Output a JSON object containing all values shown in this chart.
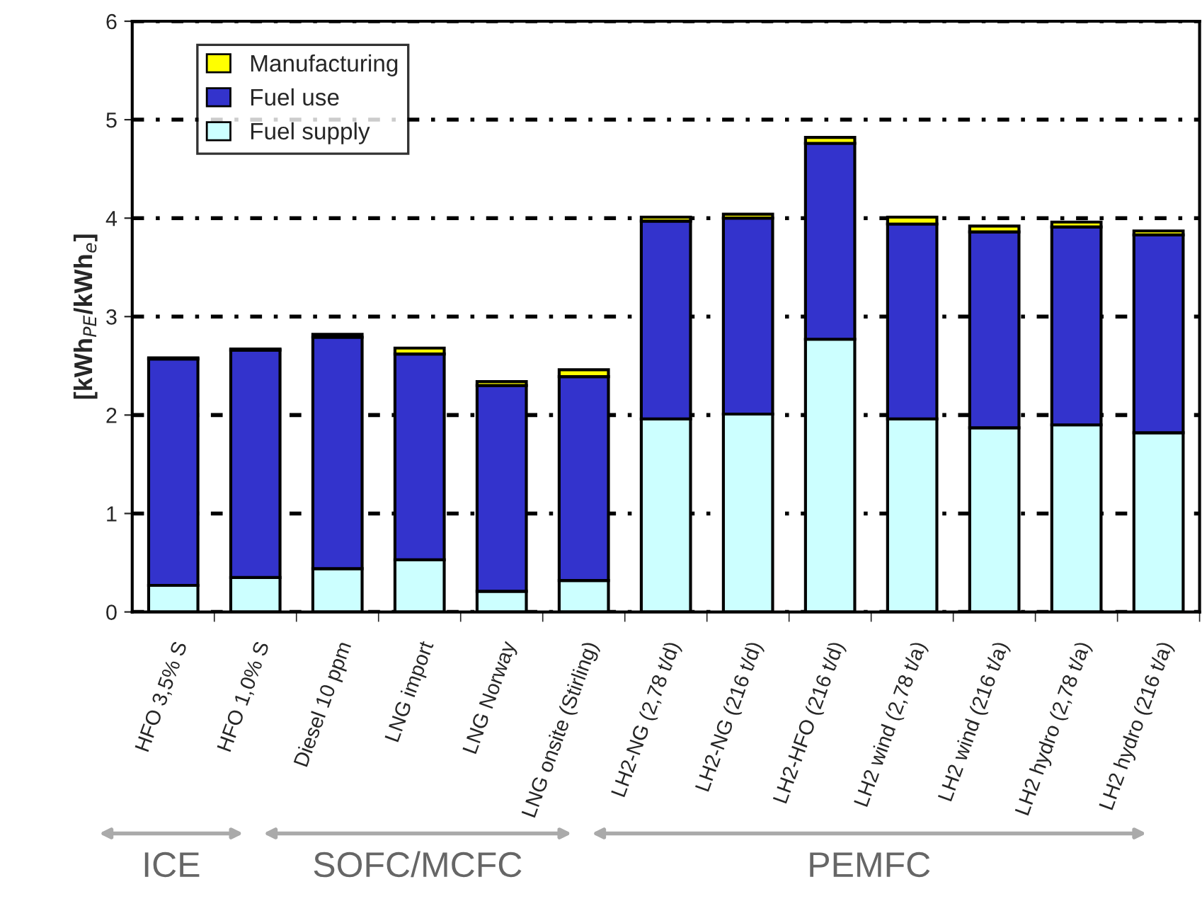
{
  "chart_data": {
    "type": "bar",
    "stacked": true,
    "ylabel": "[kWh$_{PE}$/kWh$_{e}$]",
    "categories": [
      "HFO 3,5% S",
      "HFO 1,0% S",
      "Diesel 10 ppm",
      "LNG import",
      "LNG Norway",
      "LNG onsite (Stirling)",
      "LH2-NG (2,78 t/d)",
      "LH2-NG (216 t/d)",
      "LH2-HFO (216 t/d)",
      "LH2 wind (2,78 t/a)",
      "LH2 wind (216 t/a)",
      "LH2 hydro (2,78 t/a)",
      "LH2 hydro (216 t/a)"
    ],
    "series": [
      {
        "name": "Fuel supply",
        "color": "#ccffff",
        "values": [
          0.27,
          0.35,
          0.44,
          0.53,
          0.21,
          0.32,
          1.96,
          2.01,
          2.77,
          1.96,
          1.87,
          1.9,
          1.82
        ]
      },
      {
        "name": "Fuel use",
        "color": "#3333cc",
        "values": [
          2.3,
          2.31,
          2.35,
          2.09,
          2.09,
          2.07,
          2.01,
          1.99,
          1.99,
          1.98,
          1.99,
          2.01,
          2.01
        ]
      },
      {
        "name": "Manufacturing",
        "color": "#ffff00",
        "values": [
          0.01,
          0.01,
          0.03,
          0.06,
          0.04,
          0.07,
          0.04,
          0.04,
          0.06,
          0.07,
          0.06,
          0.05,
          0.04
        ]
      }
    ],
    "ylim": [
      0,
      6
    ],
    "yticks": [
      0,
      1,
      2,
      3,
      4,
      5,
      6
    ],
    "grid": "y",
    "legend": "top left",
    "annotations": [
      "ICE",
      "SOFC/MCFC",
      "PEMFC"
    ]
  }
}
